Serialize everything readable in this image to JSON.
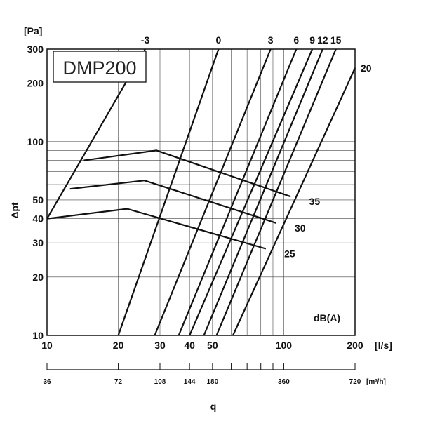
{
  "chart_data": {
    "type": "line",
    "title": "DMP200",
    "xlabel": "q",
    "ylabel": "Δpt",
    "x_unit": "[l/s]",
    "y_unit": "[Pa]",
    "x2_unit": "[m³/h]",
    "xscale": "log",
    "yscale": "log",
    "xlim": [
      10,
      200
    ],
    "ylim": [
      10,
      300
    ],
    "x_ticks": [
      10,
      20,
      30,
      40,
      50,
      100,
      200
    ],
    "y_ticks": [
      10,
      20,
      30,
      40,
      50,
      100,
      200,
      300
    ],
    "x2_ticks": [
      36,
      72,
      108,
      144,
      180,
      360,
      720
    ],
    "grid": true,
    "sound_level_unit": "dB(A)",
    "sound_lines": [
      {
        "name": "-3",
        "points": [
          [
            10,
            40
          ],
          [
            26,
            300
          ]
        ]
      },
      {
        "name": "0",
        "points": [
          [
            20,
            10
          ],
          [
            53,
            300
          ]
        ]
      },
      {
        "name": "3",
        "points": [
          [
            28.5,
            10
          ],
          [
            88,
            300
          ]
        ]
      },
      {
        "name": "6",
        "points": [
          [
            36,
            10
          ],
          [
            113,
            300
          ]
        ]
      },
      {
        "name": "9",
        "points": [
          [
            40,
            10
          ],
          [
            132,
            300
          ]
        ]
      },
      {
        "name": "12",
        "points": [
          [
            46,
            10
          ],
          [
            146,
            300
          ]
        ]
      },
      {
        "name": "15",
        "points": [
          [
            52,
            10
          ],
          [
            166,
            300
          ]
        ]
      },
      {
        "name": "20",
        "points": [
          [
            61,
            10
          ],
          [
            200,
            240
          ]
        ]
      }
    ],
    "position_lines": [
      {
        "name": "35",
        "points": [
          [
            14.3,
            80
          ],
          [
            29,
            90
          ],
          [
            107,
            52
          ]
        ]
      },
      {
        "name": "30",
        "points": [
          [
            12.5,
            57
          ],
          [
            25.8,
            63
          ],
          [
            93,
            38
          ]
        ]
      },
      {
        "name": "25",
        "points": [
          [
            10,
            40
          ],
          [
            21.8,
            45
          ],
          [
            84,
            28
          ]
        ]
      }
    ]
  }
}
